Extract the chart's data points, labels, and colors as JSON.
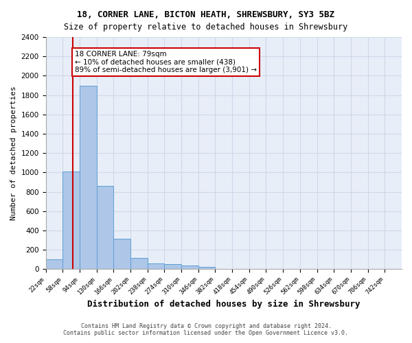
{
  "title_line1": "18, CORNER LANE, BICTON HEATH, SHREWSBURY, SY3 5BZ",
  "title_line2": "Size of property relative to detached houses in Shrewsbury",
  "xlabel": "Distribution of detached houses by size in Shrewsbury",
  "ylabel": "Number of detached properties",
  "annotation_line1": "18 CORNER LANE: 79sqm",
  "annotation_line2": "← 10% of detached houses are smaller (438)",
  "annotation_line3": "89% of semi-detached houses are larger (3,901) →",
  "property_sqm": 79,
  "bar_left_edges": [
    22,
    58,
    94,
    130,
    166,
    202,
    238,
    274,
    310,
    346,
    382,
    418,
    454,
    490,
    526,
    562,
    598,
    634,
    670,
    706
  ],
  "bar_heights": [
    100,
    1010,
    1900,
    860,
    315,
    120,
    60,
    50,
    40,
    25,
    0,
    0,
    0,
    0,
    0,
    0,
    0,
    0,
    0,
    0
  ],
  "bin_width": 36,
  "bar_color": "#aec6e8",
  "bar_edge_color": "#5a9fd4",
  "vline_color": "#cc0000",
  "vline_x": 79,
  "annotation_box_color": "#cc0000",
  "annotation_text_color": "#000000",
  "tick_labels": [
    "22sqm",
    "58sqm",
    "94sqm",
    "130sqm",
    "166sqm",
    "202sqm",
    "238sqm",
    "274sqm",
    "310sqm",
    "346sqm",
    "382sqm",
    "418sqm",
    "454sqm",
    "490sqm",
    "526sqm",
    "562sqm",
    "598sqm",
    "634sqm",
    "670sqm",
    "706sqm",
    "742sqm"
  ],
  "ylim": [
    0,
    2400
  ],
  "yticks": [
    0,
    200,
    400,
    600,
    800,
    1000,
    1200,
    1400,
    1600,
    1800,
    2000,
    2200,
    2400
  ],
  "grid_color": "#d0d8e8",
  "background_color": "#e8eef8",
  "footer1": "Contains HM Land Registry data © Crown copyright and database right 2024.",
  "footer2": "Contains public sector information licensed under the Open Government Licence v3.0."
}
